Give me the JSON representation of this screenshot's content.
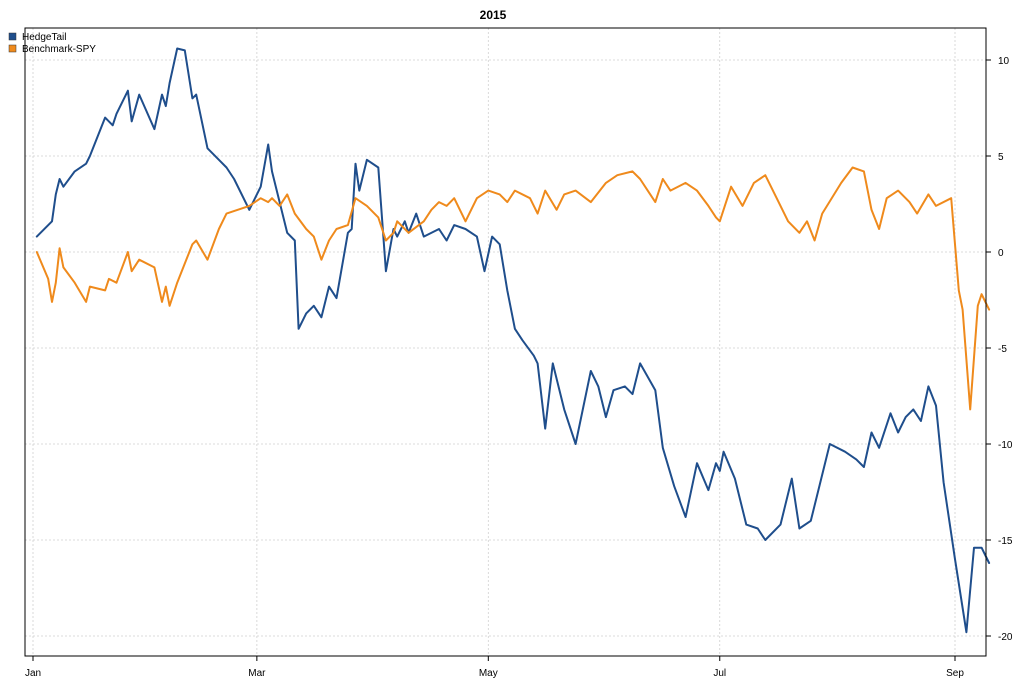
{
  "chart_data": {
    "type": "line",
    "title": "2015",
    "xlabel": "",
    "ylabel": "",
    "x_range": [
      "2015-01-01",
      "2015-09-01"
    ],
    "x_ticks": [
      {
        "date": "2015-01-01",
        "label": "Jan"
      },
      {
        "date": "2015-03-01",
        "label": "Mar"
      },
      {
        "date": "2015-05-01",
        "label": "May"
      },
      {
        "date": "2015-07-01",
        "label": "Jul"
      },
      {
        "date": "2015-09-01",
        "label": "Sep"
      }
    ],
    "ylim": [
      -21,
      12.5
    ],
    "y_ticks": [
      10,
      5,
      0,
      -5,
      -10,
      -15,
      -20
    ],
    "y_axis_side": "right",
    "grid": true,
    "legend_position": "top-left",
    "series": [
      {
        "name": "HedgeTail",
        "color": "#1f4e8c",
        "points": [
          [
            "2015-01-02",
            0.8
          ],
          [
            "2015-01-06",
            1.6
          ],
          [
            "2015-01-07",
            3.0
          ],
          [
            "2015-01-08",
            3.8
          ],
          [
            "2015-01-09",
            3.4
          ],
          [
            "2015-01-12",
            4.2
          ],
          [
            "2015-01-15",
            4.6
          ],
          [
            "2015-01-16",
            5.0
          ],
          [
            "2015-01-20",
            7.0
          ],
          [
            "2015-01-22",
            6.6
          ],
          [
            "2015-01-23",
            7.2
          ],
          [
            "2015-01-26",
            8.4
          ],
          [
            "2015-01-27",
            6.8
          ],
          [
            "2015-01-29",
            8.2
          ],
          [
            "2015-02-02",
            6.4
          ],
          [
            "2015-02-04",
            8.2
          ],
          [
            "2015-02-05",
            7.6
          ],
          [
            "2015-02-06",
            8.8
          ],
          [
            "2015-02-08",
            10.6
          ],
          [
            "2015-02-10",
            10.5
          ],
          [
            "2015-02-12",
            8.0
          ],
          [
            "2015-02-13",
            8.2
          ],
          [
            "2015-02-16",
            5.4
          ],
          [
            "2015-02-19",
            4.8
          ],
          [
            "2015-02-21",
            4.4
          ],
          [
            "2015-02-23",
            3.8
          ],
          [
            "2015-02-27",
            2.2
          ],
          [
            "2015-03-02",
            3.4
          ],
          [
            "2015-03-04",
            5.6
          ],
          [
            "2015-03-05",
            4.2
          ],
          [
            "2015-03-09",
            1.0
          ],
          [
            "2015-03-11",
            0.6
          ],
          [
            "2015-03-12",
            -4.0
          ],
          [
            "2015-03-14",
            -3.2
          ],
          [
            "2015-03-16",
            -2.8
          ],
          [
            "2015-03-18",
            -3.4
          ],
          [
            "2015-03-20",
            -1.8
          ],
          [
            "2015-03-22",
            -2.4
          ],
          [
            "2015-03-25",
            1.0
          ],
          [
            "2015-03-26",
            1.2
          ],
          [
            "2015-03-27",
            4.6
          ],
          [
            "2015-03-28",
            3.2
          ],
          [
            "2015-03-30",
            4.8
          ],
          [
            "2015-04-02",
            4.4
          ],
          [
            "2015-04-04",
            -1.0
          ],
          [
            "2015-04-06",
            1.2
          ],
          [
            "2015-04-07",
            0.8
          ],
          [
            "2015-04-09",
            1.6
          ],
          [
            "2015-04-10",
            1.0
          ],
          [
            "2015-04-12",
            2.0
          ],
          [
            "2015-04-14",
            0.8
          ],
          [
            "2015-04-18",
            1.2
          ],
          [
            "2015-04-20",
            0.6
          ],
          [
            "2015-04-22",
            1.4
          ],
          [
            "2015-04-25",
            1.2
          ],
          [
            "2015-04-28",
            0.8
          ],
          [
            "2015-04-30",
            -1.0
          ],
          [
            "2015-05-02",
            0.8
          ],
          [
            "2015-05-04",
            0.4
          ],
          [
            "2015-05-06",
            -2.0
          ],
          [
            "2015-05-08",
            -4.0
          ],
          [
            "2015-05-10",
            -4.6
          ],
          [
            "2015-05-13",
            -5.4
          ],
          [
            "2015-05-14",
            -5.8
          ],
          [
            "2015-05-16",
            -9.2
          ],
          [
            "2015-05-18",
            -5.8
          ],
          [
            "2015-05-21",
            -8.2
          ],
          [
            "2015-05-24",
            -10.0
          ],
          [
            "2015-05-28",
            -6.2
          ],
          [
            "2015-05-30",
            -7.0
          ],
          [
            "2015-06-01",
            -8.6
          ],
          [
            "2015-06-03",
            -7.2
          ],
          [
            "2015-06-06",
            -7.0
          ],
          [
            "2015-06-08",
            -7.4
          ],
          [
            "2015-06-10",
            -5.8
          ],
          [
            "2015-06-14",
            -7.2
          ],
          [
            "2015-06-16",
            -10.2
          ],
          [
            "2015-06-19",
            -12.2
          ],
          [
            "2015-06-22",
            -13.8
          ],
          [
            "2015-06-25",
            -11.0
          ],
          [
            "2015-06-28",
            -12.4
          ],
          [
            "2015-06-30",
            -11.0
          ],
          [
            "2015-07-01",
            -11.4
          ],
          [
            "2015-07-02",
            -10.4
          ],
          [
            "2015-07-05",
            -11.8
          ],
          [
            "2015-07-08",
            -14.2
          ],
          [
            "2015-07-11",
            -14.4
          ],
          [
            "2015-07-13",
            -15.0
          ],
          [
            "2015-07-17",
            -14.2
          ],
          [
            "2015-07-20",
            -11.8
          ],
          [
            "2015-07-22",
            -14.4
          ],
          [
            "2015-07-25",
            -14.0
          ],
          [
            "2015-07-30",
            -10.0
          ],
          [
            "2015-08-03",
            -10.4
          ],
          [
            "2015-08-06",
            -10.8
          ],
          [
            "2015-08-08",
            -11.2
          ],
          [
            "2015-08-10",
            -9.4
          ],
          [
            "2015-08-12",
            -10.2
          ],
          [
            "2015-08-15",
            -8.4
          ],
          [
            "2015-08-17",
            -9.4
          ],
          [
            "2015-08-19",
            -8.6
          ],
          [
            "2015-08-21",
            -8.2
          ],
          [
            "2015-08-23",
            -8.8
          ],
          [
            "2015-08-25",
            -7.0
          ],
          [
            "2015-08-27",
            -8.0
          ],
          [
            "2015-08-29",
            -12.0
          ],
          [
            "2015-09-01",
            -16.0
          ],
          [
            "2015-09-04",
            -19.8
          ],
          [
            "2015-09-06",
            -15.4
          ],
          [
            "2015-09-08",
            -15.4
          ],
          [
            "2015-09-10",
            -16.2
          ]
        ]
      },
      {
        "name": "Benchmark-SPY",
        "color": "#ef8a1c",
        "points": [
          [
            "2015-01-02",
            0.0
          ],
          [
            "2015-01-05",
            -1.4
          ],
          [
            "2015-01-06",
            -2.6
          ],
          [
            "2015-01-07",
            -1.6
          ],
          [
            "2015-01-08",
            0.2
          ],
          [
            "2015-01-09",
            -0.8
          ],
          [
            "2015-01-12",
            -1.6
          ],
          [
            "2015-01-15",
            -2.6
          ],
          [
            "2015-01-16",
            -1.8
          ],
          [
            "2015-01-20",
            -2.0
          ],
          [
            "2015-01-21",
            -1.4
          ],
          [
            "2015-01-23",
            -1.6
          ],
          [
            "2015-01-26",
            0.0
          ],
          [
            "2015-01-27",
            -1.0
          ],
          [
            "2015-01-29",
            -0.4
          ],
          [
            "2015-02-02",
            -0.8
          ],
          [
            "2015-02-04",
            -2.6
          ],
          [
            "2015-02-05",
            -1.8
          ],
          [
            "2015-02-06",
            -2.8
          ],
          [
            "2015-02-08",
            -1.6
          ],
          [
            "2015-02-10",
            -0.6
          ],
          [
            "2015-02-12",
            0.4
          ],
          [
            "2015-02-13",
            0.6
          ],
          [
            "2015-02-16",
            -0.4
          ],
          [
            "2015-02-19",
            1.2
          ],
          [
            "2015-02-21",
            2.0
          ],
          [
            "2015-02-27",
            2.4
          ],
          [
            "2015-03-02",
            2.8
          ],
          [
            "2015-03-04",
            2.6
          ],
          [
            "2015-03-05",
            2.8
          ],
          [
            "2015-03-07",
            2.4
          ],
          [
            "2015-03-09",
            3.0
          ],
          [
            "2015-03-11",
            2.0
          ],
          [
            "2015-03-14",
            1.2
          ],
          [
            "2015-03-16",
            0.8
          ],
          [
            "2015-03-18",
            -0.4
          ],
          [
            "2015-03-20",
            0.6
          ],
          [
            "2015-03-22",
            1.2
          ],
          [
            "2015-03-25",
            1.4
          ],
          [
            "2015-03-27",
            2.8
          ],
          [
            "2015-03-30",
            2.4
          ],
          [
            "2015-04-02",
            1.8
          ],
          [
            "2015-04-04",
            0.6
          ],
          [
            "2015-04-06",
            1.0
          ],
          [
            "2015-04-07",
            1.6
          ],
          [
            "2015-04-10",
            1.0
          ],
          [
            "2015-04-14",
            1.6
          ],
          [
            "2015-04-16",
            2.2
          ],
          [
            "2015-04-18",
            2.6
          ],
          [
            "2015-04-20",
            2.4
          ],
          [
            "2015-04-22",
            2.8
          ],
          [
            "2015-04-25",
            1.6
          ],
          [
            "2015-04-28",
            2.8
          ],
          [
            "2015-05-01",
            3.2
          ],
          [
            "2015-05-04",
            3.0
          ],
          [
            "2015-05-06",
            2.6
          ],
          [
            "2015-05-08",
            3.2
          ],
          [
            "2015-05-12",
            2.8
          ],
          [
            "2015-05-14",
            2.0
          ],
          [
            "2015-05-16",
            3.2
          ],
          [
            "2015-05-19",
            2.2
          ],
          [
            "2015-05-21",
            3.0
          ],
          [
            "2015-05-24",
            3.2
          ],
          [
            "2015-05-28",
            2.6
          ],
          [
            "2015-06-01",
            3.6
          ],
          [
            "2015-06-04",
            4.0
          ],
          [
            "2015-06-08",
            4.2
          ],
          [
            "2015-06-10",
            3.8
          ],
          [
            "2015-06-12",
            3.2
          ],
          [
            "2015-06-14",
            2.6
          ],
          [
            "2015-06-16",
            3.8
          ],
          [
            "2015-06-18",
            3.2
          ],
          [
            "2015-06-22",
            3.6
          ],
          [
            "2015-06-25",
            3.2
          ],
          [
            "2015-06-28",
            2.4
          ],
          [
            "2015-06-30",
            1.8
          ],
          [
            "2015-07-01",
            1.6
          ],
          [
            "2015-07-04",
            3.4
          ],
          [
            "2015-07-07",
            2.4
          ],
          [
            "2015-07-10",
            3.6
          ],
          [
            "2015-07-13",
            4.0
          ],
          [
            "2015-07-16",
            2.8
          ],
          [
            "2015-07-19",
            1.6
          ],
          [
            "2015-07-22",
            1.0
          ],
          [
            "2015-07-24",
            1.6
          ],
          [
            "2015-07-26",
            0.6
          ],
          [
            "2015-07-28",
            2.0
          ],
          [
            "2015-08-02",
            3.6
          ],
          [
            "2015-08-05",
            4.4
          ],
          [
            "2015-08-08",
            4.2
          ],
          [
            "2015-08-10",
            2.2
          ],
          [
            "2015-08-12",
            1.2
          ],
          [
            "2015-08-14",
            2.8
          ],
          [
            "2015-08-17",
            3.2
          ],
          [
            "2015-08-20",
            2.6
          ],
          [
            "2015-08-22",
            2.0
          ],
          [
            "2015-08-25",
            3.0
          ],
          [
            "2015-08-27",
            2.4
          ],
          [
            "2015-08-31",
            2.8
          ],
          [
            "2015-09-02",
            -2.0
          ],
          [
            "2015-09-03",
            -3.0
          ],
          [
            "2015-09-05",
            -8.2
          ],
          [
            "2015-09-07",
            -2.8
          ],
          [
            "2015-09-08",
            -2.2
          ],
          [
            "2015-09-10",
            -3.0
          ]
        ]
      }
    ]
  }
}
